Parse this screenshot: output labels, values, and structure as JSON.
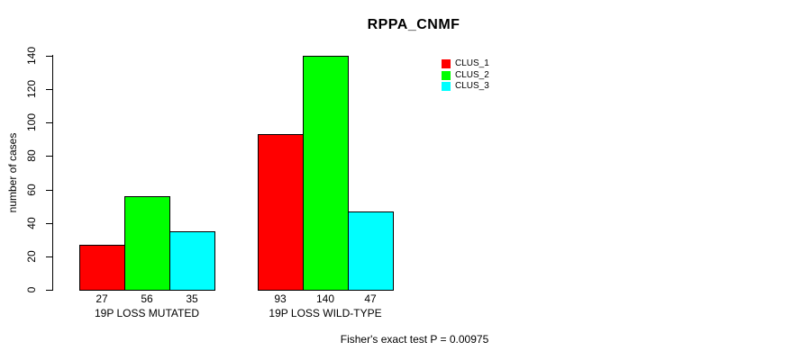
{
  "chart_data": {
    "type": "bar",
    "title": "RPPA_CNMF",
    "ylabel": "number of cases",
    "xlabel": "",
    "ylim": [
      0,
      140
    ],
    "yticks": [
      0,
      20,
      40,
      60,
      80,
      100,
      120,
      140
    ],
    "grid": false,
    "legend_position": "top-right",
    "categories": [
      "19P LOSS MUTATED",
      "19P LOSS WILD-TYPE"
    ],
    "series": [
      {
        "name": "CLUS_1",
        "color": "#ff0000",
        "values": [
          27,
          93
        ]
      },
      {
        "name": "CLUS_2",
        "color": "#00ff00",
        "values": [
          56,
          140
        ]
      },
      {
        "name": "CLUS_3",
        "color": "#00ffff",
        "values": [
          35,
          47
        ]
      }
    ],
    "footnote": "Fisher's exact test P = 0.00975"
  },
  "colors": {
    "background": "#ffffff",
    "text": "#000000",
    "bar_border": "#000000",
    "axis": "#000000"
  }
}
